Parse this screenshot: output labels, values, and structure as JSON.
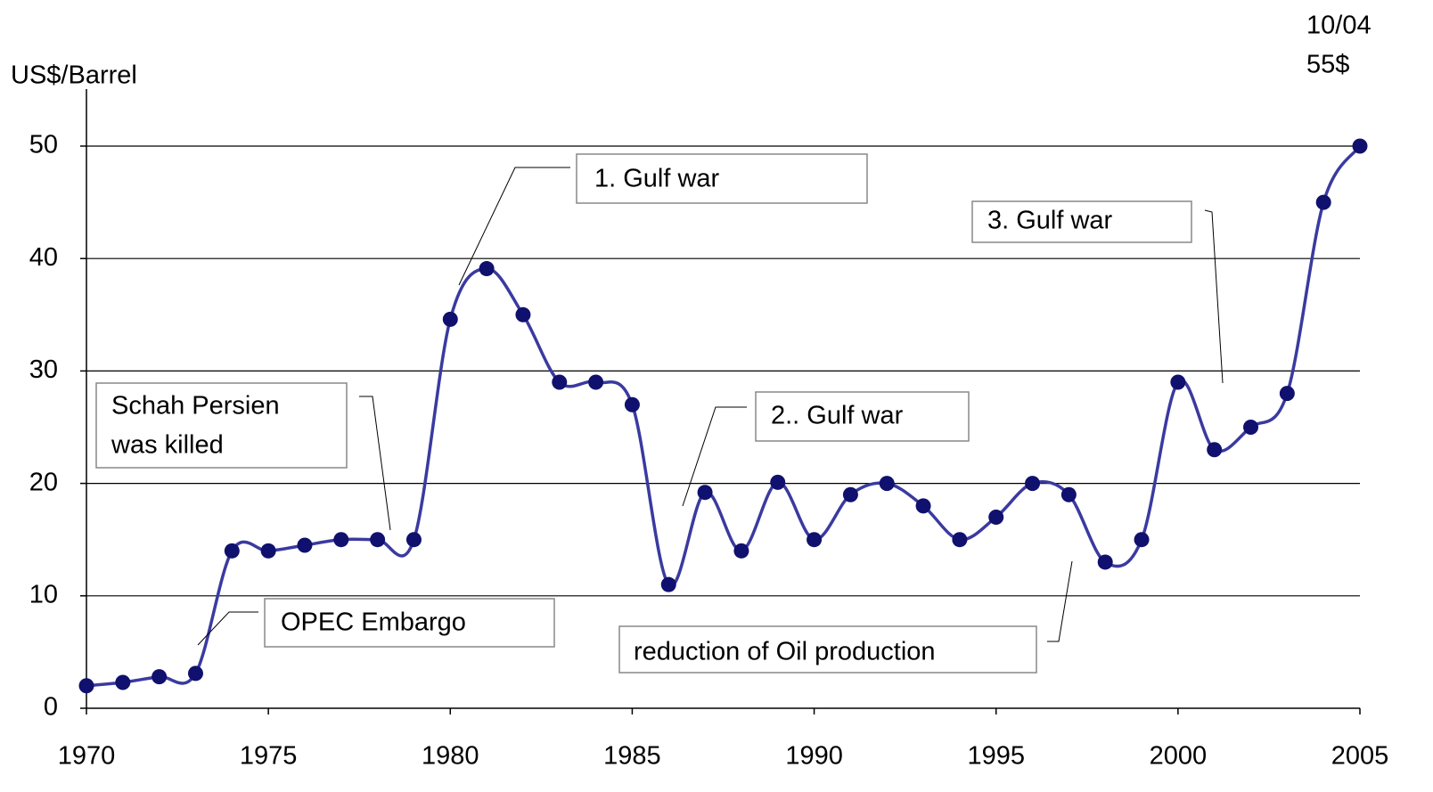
{
  "chart_data": {
    "type": "line",
    "y_label": "US$/Barrel",
    "x": [
      1970,
      1971,
      1972,
      1973,
      1974,
      1975,
      1976,
      1977,
      1978,
      1979,
      1980,
      1981,
      1982,
      1983,
      1984,
      1985,
      1986,
      1987,
      1988,
      1989,
      1990,
      1991,
      1992,
      1993,
      1994,
      1995,
      1996,
      1997,
      1998,
      1999,
      2000,
      2001,
      2002,
      2003,
      2004,
      2005
    ],
    "series": [
      {
        "color": "#3a3aa0",
        "marker_color": "#10106e",
        "values": [
          2,
          2.3,
          2.8,
          3.1,
          14,
          14,
          14.5,
          15,
          15,
          15,
          34.6,
          39.1,
          35,
          29,
          29,
          27,
          11,
          19.2,
          14,
          20.1,
          15,
          19,
          20,
          18,
          15,
          17,
          20,
          19,
          13,
          15,
          29,
          23,
          25,
          28,
          45,
          50
        ]
      }
    ],
    "xlim": [
      1970,
      2005
    ],
    "xticks": [
      1970,
      1975,
      1980,
      1985,
      1990,
      1995,
      2000,
      2005
    ],
    "ylim": [
      0,
      50
    ],
    "yticks": [
      0,
      10,
      20,
      30,
      40,
      50
    ],
    "grid": true,
    "annotations": [
      {
        "lines": [
          "10/04",
          "55$"
        ]
      },
      {
        "lines": [
          "1. Gulf war"
        ]
      },
      {
        "lines": [
          "3. Gulf war"
        ]
      },
      {
        "lines": [
          "Schah Persien",
          "was killed"
        ]
      },
      {
        "lines": [
          "2.. Gulf war"
        ]
      },
      {
        "lines": [
          "OPEC Embargo"
        ]
      },
      {
        "lines": [
          "reduction of Oil production"
        ]
      }
    ]
  }
}
